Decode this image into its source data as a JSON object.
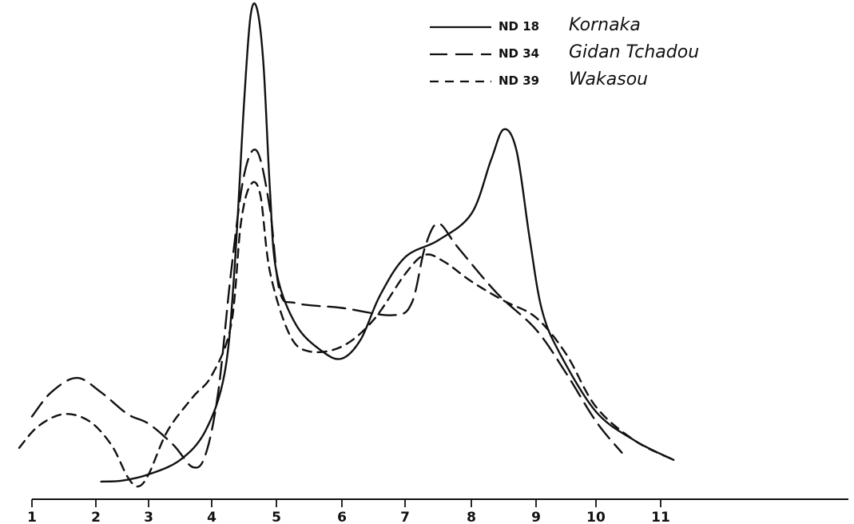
{
  "chart_data": {
    "type": "line",
    "title": "",
    "xlabel": "",
    "ylabel": "",
    "xlim": [
      1,
      14
    ],
    "ylim": [
      0,
      100
    ],
    "x_ticks": [
      "1",
      "2",
      "3",
      "4",
      "5",
      "6",
      "7",
      "8",
      "9",
      "10",
      "11"
    ],
    "y_axis_shown": false,
    "grid": false,
    "legend_position": "top-right",
    "series": [
      {
        "name": "ND 18",
        "site": "Kornaka",
        "dash": "solid",
        "color": "#111111",
        "points": [
          [
            2.1,
            1.5
          ],
          [
            2.5,
            1.7
          ],
          [
            3.0,
            3.0
          ],
          [
            3.5,
            6.0
          ],
          [
            3.9,
            12.0
          ],
          [
            4.2,
            24.0
          ],
          [
            4.35,
            45.0
          ],
          [
            4.5,
            80.0
          ],
          [
            4.6,
            98.0
          ],
          [
            4.7,
            99.5
          ],
          [
            4.8,
            88.0
          ],
          [
            4.9,
            62.0
          ],
          [
            5.0,
            45.0
          ],
          [
            5.3,
            34.0
          ],
          [
            5.7,
            28.5
          ],
          [
            6.0,
            27.0
          ],
          [
            6.3,
            31.0
          ],
          [
            6.6,
            40.0
          ],
          [
            7.0,
            48.0
          ],
          [
            7.5,
            51.5
          ],
          [
            8.0,
            57.0
          ],
          [
            8.3,
            68.0
          ],
          [
            8.5,
            74.5
          ],
          [
            8.7,
            70.0
          ],
          [
            8.9,
            52.0
          ],
          [
            9.1,
            37.0
          ],
          [
            9.4,
            28.0
          ],
          [
            10.0,
            16.0
          ],
          [
            10.6,
            10.0
          ],
          [
            11.2,
            6.0
          ]
        ]
      },
      {
        "name": "ND 34",
        "site": "Gidan Tchadou",
        "dash": "long-dash",
        "color": "#111111",
        "points": [
          [
            1.0,
            15.0
          ],
          [
            1.3,
            20.0
          ],
          [
            1.7,
            23.0
          ],
          [
            2.1,
            20.0
          ],
          [
            2.6,
            15.5
          ],
          [
            3.0,
            13.5
          ],
          [
            3.4,
            9.0
          ],
          [
            3.7,
            4.5
          ],
          [
            3.9,
            7.0
          ],
          [
            4.1,
            20.0
          ],
          [
            4.3,
            45.0
          ],
          [
            4.5,
            65.0
          ],
          [
            4.7,
            70.0
          ],
          [
            4.9,
            58.0
          ],
          [
            5.05,
            41.0
          ],
          [
            5.3,
            38.5
          ],
          [
            6.0,
            37.5
          ],
          [
            6.8,
            36.0
          ],
          [
            7.1,
            38.5
          ],
          [
            7.3,
            50.0
          ],
          [
            7.5,
            55.0
          ],
          [
            7.8,
            50.0
          ],
          [
            8.4,
            40.5
          ],
          [
            9.0,
            33.0
          ],
          [
            9.5,
            24.0
          ],
          [
            10.0,
            14.0
          ],
          [
            10.4,
            7.5
          ]
        ]
      },
      {
        "name": "ND 39",
        "site": "Wakasou",
        "dash": "short-dash",
        "color": "#111111",
        "points": [
          [
            0.8,
            8.5
          ],
          [
            1.1,
            13.0
          ],
          [
            1.5,
            15.5
          ],
          [
            1.9,
            14.0
          ],
          [
            2.3,
            9.0
          ],
          [
            2.6,
            2.5
          ],
          [
            2.8,
            0.5
          ],
          [
            3.0,
            3.0
          ],
          [
            3.3,
            12.0
          ],
          [
            3.7,
            19.0
          ],
          [
            4.0,
            23.5
          ],
          [
            4.3,
            34.0
          ],
          [
            4.45,
            55.0
          ],
          [
            4.6,
            63.0
          ],
          [
            4.75,
            61.0
          ],
          [
            4.9,
            45.0
          ],
          [
            5.2,
            32.0
          ],
          [
            5.5,
            28.5
          ],
          [
            6.0,
            29.5
          ],
          [
            6.5,
            35.0
          ],
          [
            7.0,
            44.5
          ],
          [
            7.3,
            48.5
          ],
          [
            7.6,
            47.0
          ],
          [
            8.0,
            43.0
          ],
          [
            8.5,
            39.0
          ],
          [
            9.0,
            35.5
          ],
          [
            9.5,
            28.0
          ],
          [
            10.0,
            17.0
          ],
          [
            10.6,
            10.0
          ],
          [
            11.2,
            6.0
          ]
        ]
      }
    ]
  }
}
